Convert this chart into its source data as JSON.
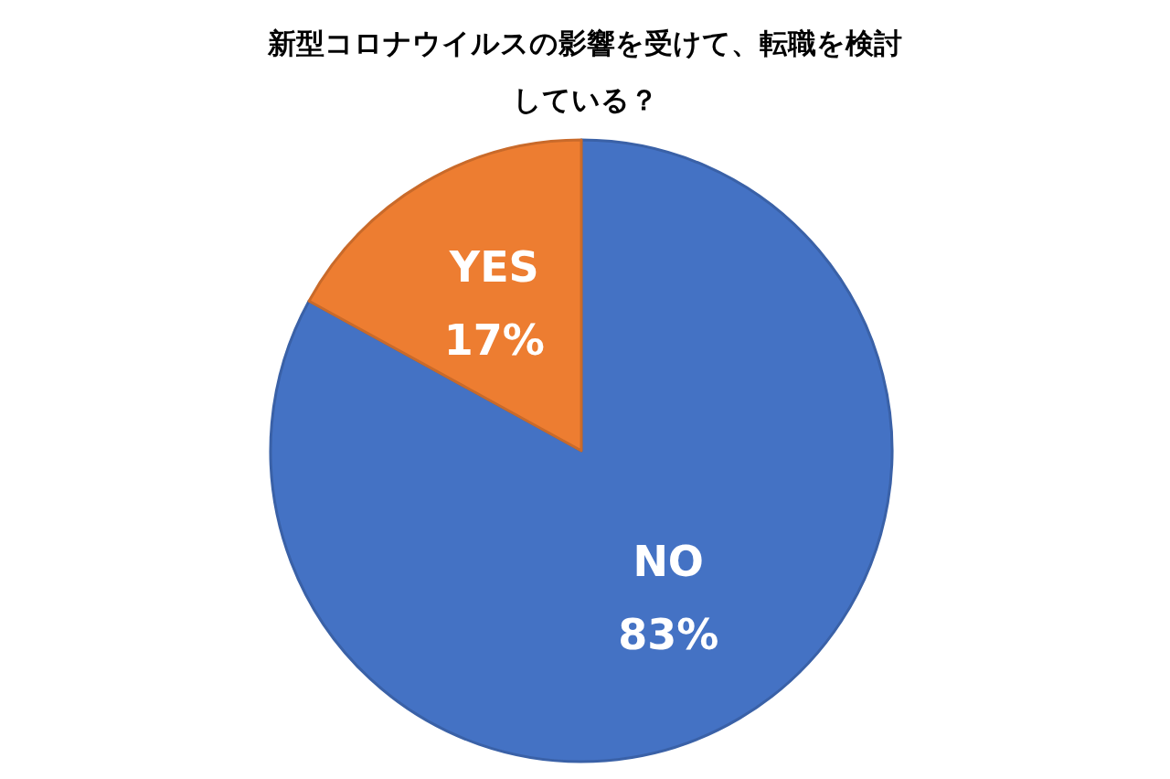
{
  "chart_data": {
    "type": "pie",
    "title": "新型コロナウイルスの影響を受けて、転職を検討している？",
    "categories": [
      "NO",
      "YES"
    ],
    "values": [
      83,
      17
    ],
    "colors": [
      "#4472c4",
      "#ed7d31"
    ],
    "value_labels": [
      "83%",
      "17%"
    ]
  }
}
